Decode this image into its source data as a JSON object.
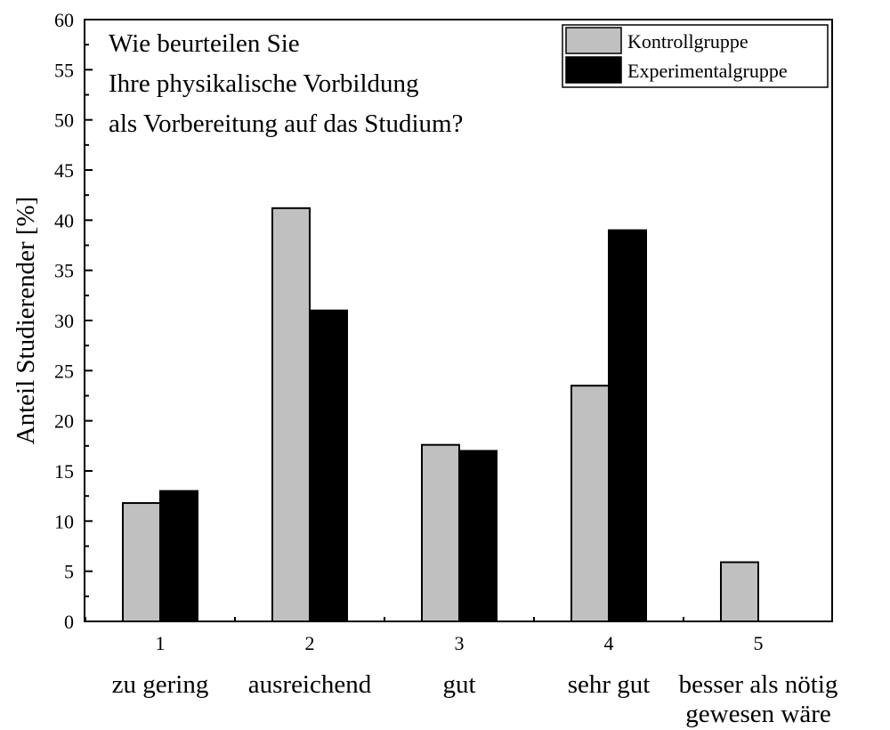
{
  "chart_data": {
    "type": "bar",
    "question": [
      "Wie beurteilen Sie",
      "Ihre physikalische Vorbildung",
      "als Vorbereitung auf das Studium?"
    ],
    "ylabel": "Anteil Studierender [%]",
    "xlabel": "",
    "ylim": [
      0,
      60
    ],
    "yticks": [
      0,
      5,
      10,
      15,
      20,
      25,
      30,
      35,
      40,
      45,
      50,
      55,
      60
    ],
    "categories": [
      {
        "number": "1",
        "label": [
          "zu gering"
        ]
      },
      {
        "number": "2",
        "label": [
          "ausreichend"
        ]
      },
      {
        "number": "3",
        "label": [
          "gut"
        ]
      },
      {
        "number": "4",
        "label": [
          "sehr gut"
        ]
      },
      {
        "number": "5",
        "label": [
          "besser als nötig",
          "gewesen wäre"
        ]
      }
    ],
    "series": [
      {
        "name": "Kontrollgruppe",
        "color": "#c0c0c0",
        "values": [
          11.8,
          41.2,
          17.6,
          23.5,
          5.9
        ]
      },
      {
        "name": "Experimentalgruppe",
        "color": "#000000",
        "values": [
          13.0,
          31.0,
          17.0,
          39.0,
          0
        ]
      }
    ],
    "legend_position": "top-right",
    "grid": false
  }
}
